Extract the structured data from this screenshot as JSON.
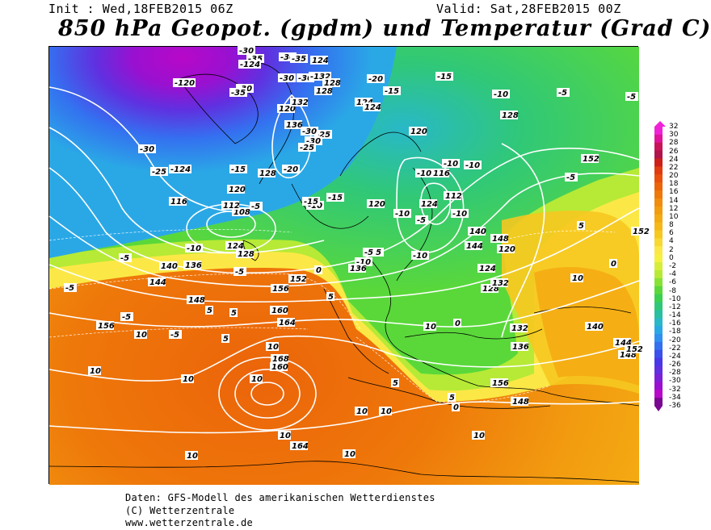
{
  "header": {
    "init": "Init : Wed,18FEB2015 06Z",
    "valid": "Valid: Sat,28FEB2015 00Z",
    "title": "850 hPa Geopot. (gpdm) und Temperatur (Grad C)"
  },
  "legend": {
    "ticks": [
      "32",
      "30",
      "28",
      "26",
      "24",
      "22",
      "20",
      "18",
      "16",
      "14",
      "12",
      "10",
      "8",
      "6",
      "4",
      "2",
      "0",
      "-2",
      "-4",
      "-6",
      "-8",
      "-10",
      "-12",
      "-14",
      "-16",
      "-18",
      "-20",
      "-22",
      "-24",
      "-26",
      "-28",
      "-30",
      "-32",
      "-34",
      "-36"
    ],
    "colors": [
      "#f022d6",
      "#e0149c",
      "#c81458",
      "#b0144a",
      "#cc2018",
      "#e03c10",
      "#e8500c",
      "#ec640a",
      "#ee780a",
      "#f08c0e",
      "#f29c10",
      "#f4aa12",
      "#f5b818",
      "#f6c820",
      "#f8d832",
      "#fbe846",
      "#f6f040",
      "#d6ee3a",
      "#b6ea36",
      "#88e236",
      "#5ad83a",
      "#3cd050",
      "#30c878",
      "#28c0a0",
      "#28b8c8",
      "#2aa8e6",
      "#3090f0",
      "#3470f0",
      "#3c50ec",
      "#4838e8",
      "#6030e0",
      "#7c20d8",
      "#9a10d0",
      "#b808c8",
      "#7a0890"
    ]
  },
  "map": {
    "temperature_labels": [
      "-30",
      "-35",
      "-124",
      "-30",
      "-35",
      "-120",
      "-30",
      "-35",
      "-30",
      "-30",
      "-132",
      "-20",
      "-15",
      "-15",
      "-10",
      "-25",
      "-30",
      "-30",
      "-25",
      "-124",
      "-15",
      "-20",
      "-30",
      "-25",
      "-15",
      "-10",
      "-15",
      "-5",
      "-10",
      "-5",
      "-5",
      "-10",
      "-5",
      "-5",
      "-10",
      "-10",
      "-10",
      "-10",
      "-5",
      "-5",
      "-5",
      "-10",
      "-5",
      "0",
      "5",
      "5",
      "5",
      "5",
      "10",
      "10",
      "10",
      "10",
      "10",
      "10",
      "10",
      "10",
      "10",
      "10",
      "10",
      "0",
      "5",
      "5",
      "10",
      "10",
      "5",
      "0",
      "0",
      "-10",
      "-5",
      "-5",
      "-5"
    ],
    "height_labels": [
      "120",
      "124",
      "128",
      "124",
      "128",
      "132",
      "136",
      "124",
      "116",
      "128",
      "120",
      "108",
      "112",
      "124",
      "128",
      "140",
      "136",
      "144",
      "148",
      "152",
      "156",
      "160",
      "164",
      "168",
      "160",
      "164",
      "156",
      "120",
      "116",
      "112",
      "120",
      "124",
      "128",
      "132",
      "136",
      "140",
      "144",
      "148",
      "152",
      "156",
      "148",
      "152",
      "120",
      "124",
      "128",
      "132",
      "136",
      "140",
      "144",
      "148",
      "152"
    ]
  },
  "footer": {
    "line1": "Daten: GFS-Modell des amerikanischen Wetterdienstes",
    "line2": "(C) Wetterzentrale",
    "line3": "www.wetterzentrale.de"
  }
}
